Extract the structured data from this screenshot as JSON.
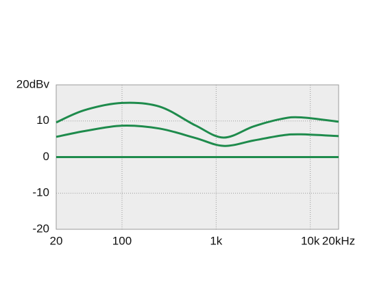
{
  "chart_data": {
    "type": "line",
    "x": [
      20,
      40,
      100,
      250,
      600,
      1200,
      2500,
      5000,
      8000,
      20000
    ],
    "series": [
      {
        "color": "#1e8b4c",
        "values": [
          9.6,
          13,
          15,
          14,
          8.8,
          5.4,
          8.5,
          10.6,
          11,
          9.8
        ]
      },
      {
        "color": "#1e8b4c",
        "values": [
          5.6,
          7.2,
          8.7,
          7.9,
          5.3,
          3.1,
          4.6,
          6,
          6.3,
          5.8
        ]
      },
      {
        "color": "#1e8b4c",
        "values": [
          0,
          0,
          0,
          0,
          0,
          0,
          0,
          0,
          0,
          0
        ]
      }
    ],
    "xlim": [
      20,
      20000
    ],
    "xlog": true,
    "xticks": [
      20,
      100,
      {
        "value": 1000,
        "label": "1k"
      },
      {
        "value": 10000,
        "label": "10k"
      },
      {
        "value": 20000,
        "label": "20kHz"
      }
    ],
    "ylim": [
      -20,
      20
    ],
    "yticks": [
      {
        "value": 20,
        "label": "20dBv"
      },
      10,
      0,
      -10,
      -20
    ],
    "grid": true
  }
}
